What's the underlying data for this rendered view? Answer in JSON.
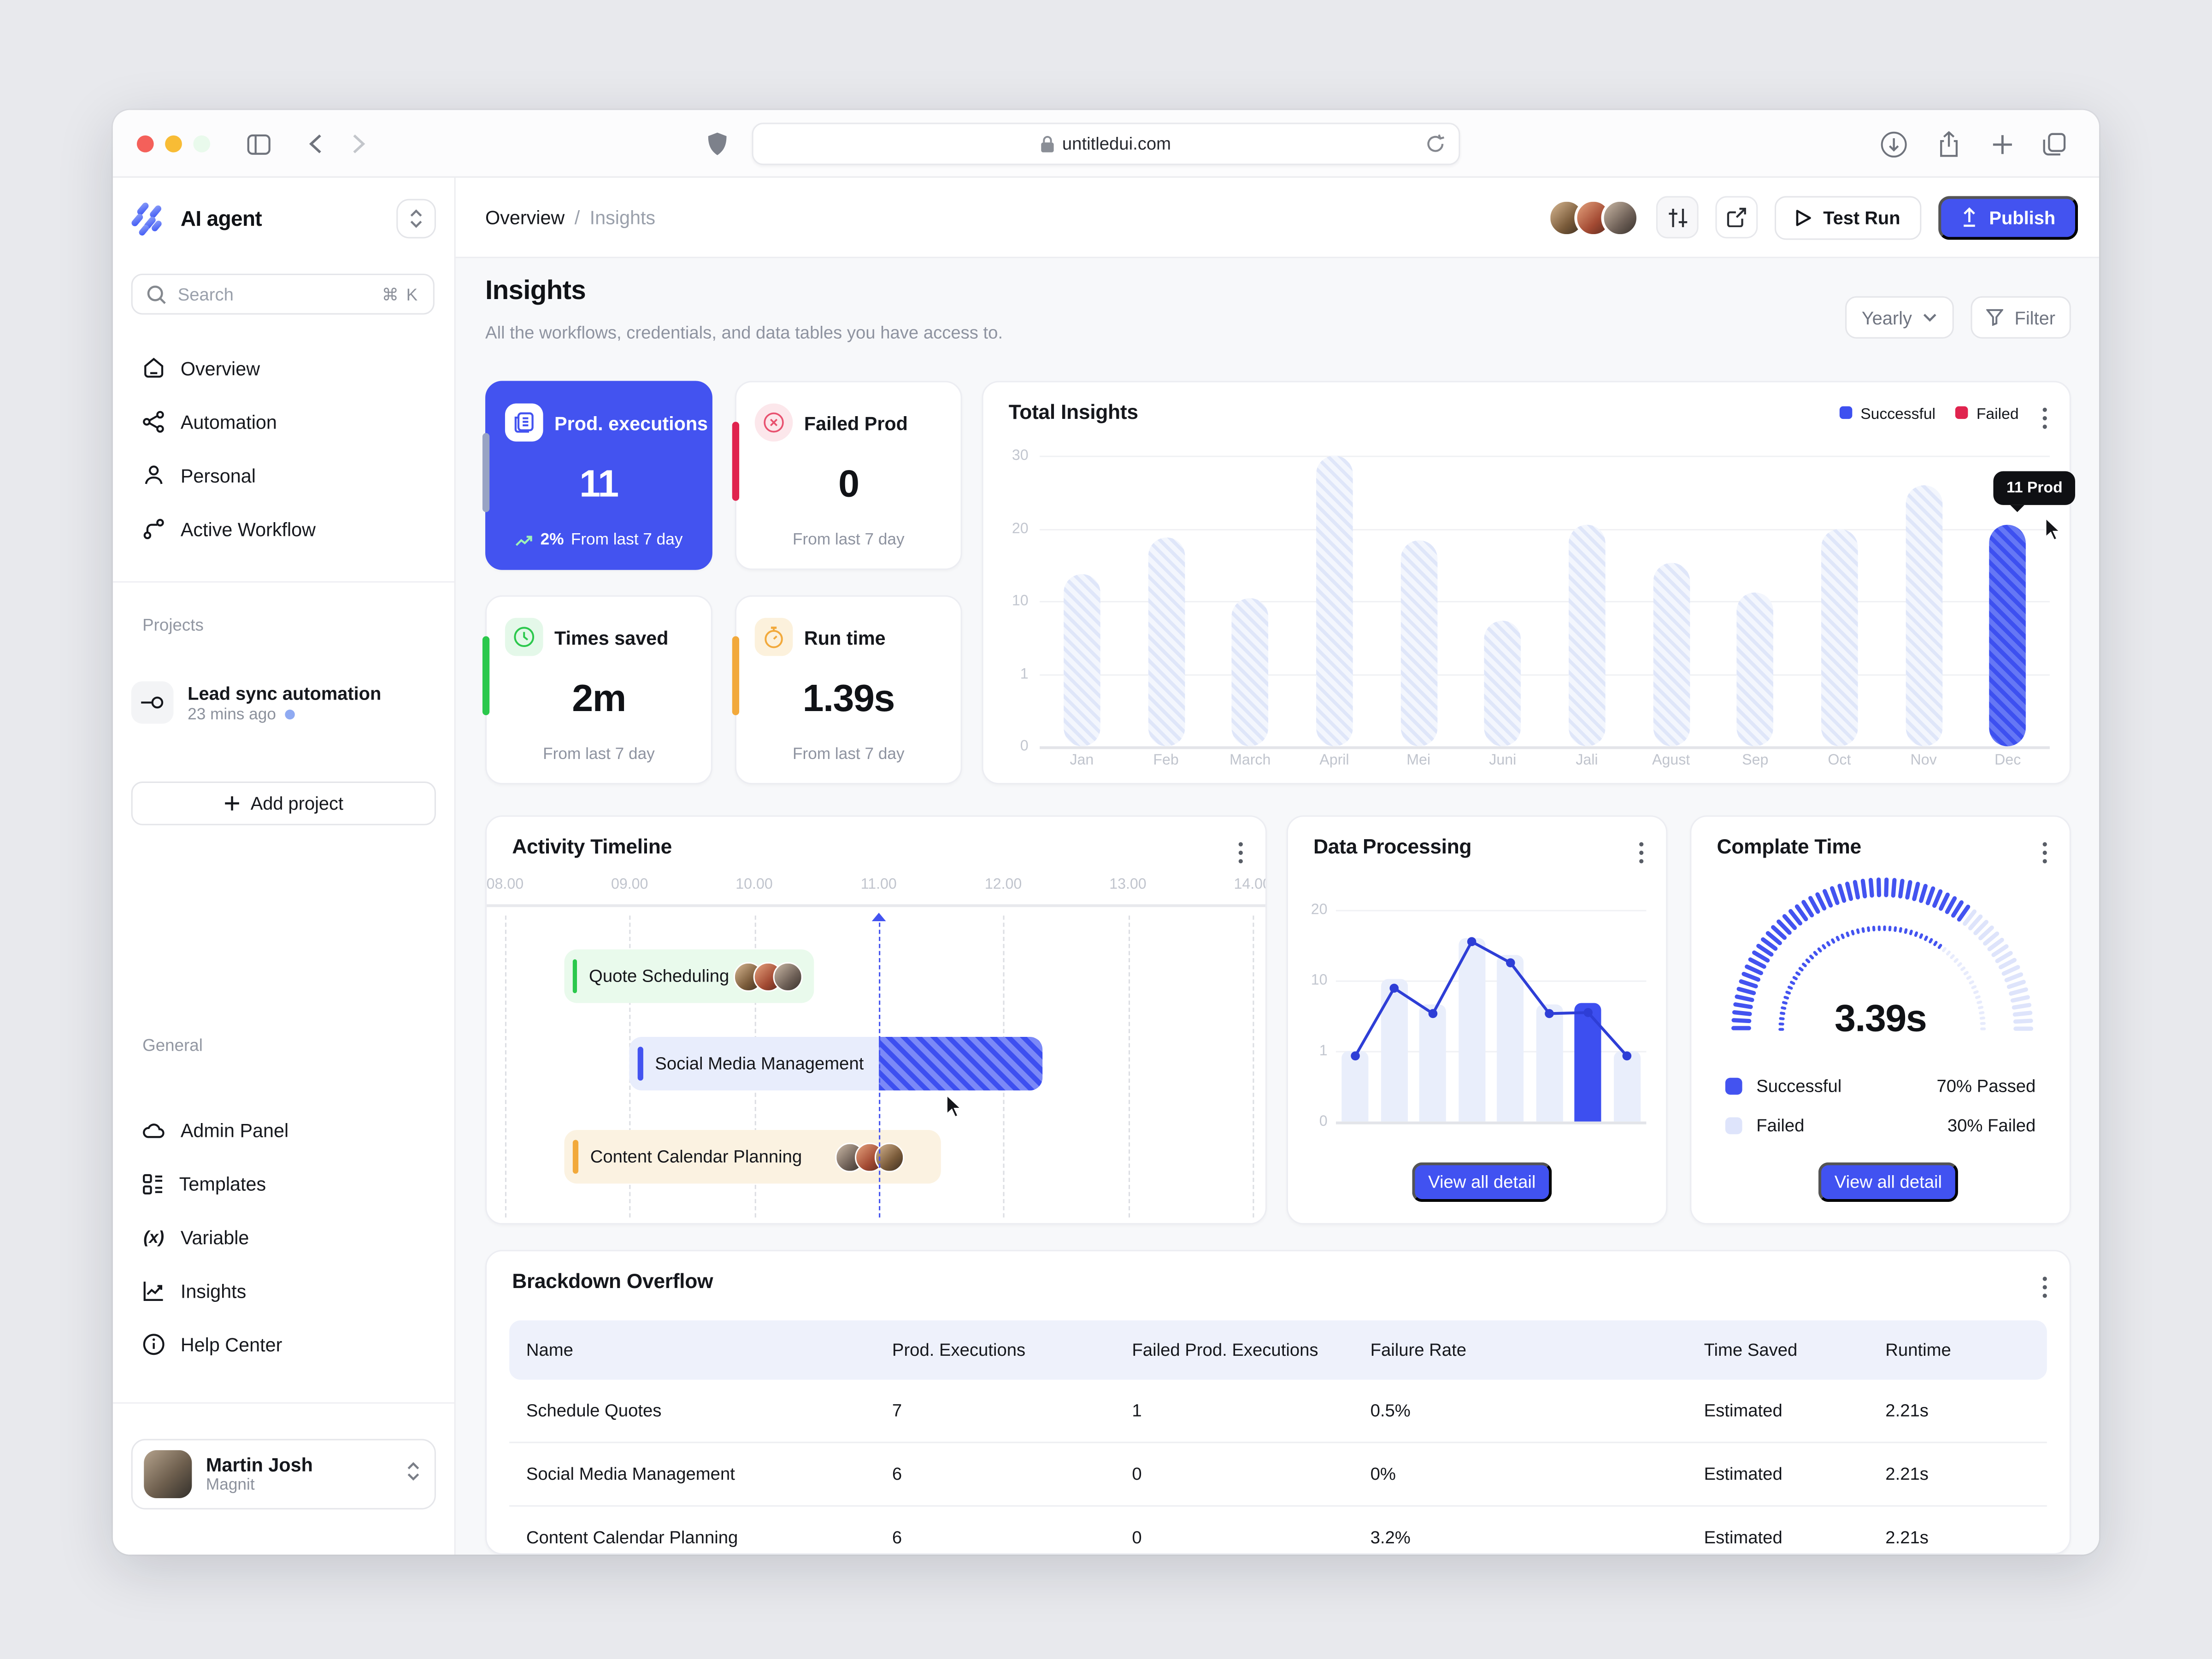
{
  "colors": {
    "accent": "#4353F0",
    "failed": "#E0234E",
    "success": "#2BC84C",
    "warning": "#F2A93B",
    "tooltip_bg": "#0F1013"
  },
  "browser": {
    "url": "untitledui.com"
  },
  "sidebar": {
    "app_name": "AI agent",
    "search": {
      "placeholder": "Search",
      "shortcut": "⌘ K"
    },
    "nav": [
      {
        "label": "Overview"
      },
      {
        "label": "Automation"
      },
      {
        "label": "Personal"
      },
      {
        "label": "Active Workflow"
      }
    ],
    "projects_label": "Projects",
    "project": {
      "name": "Lead sync automation",
      "time": "23 mins ago"
    },
    "add_project_label": "Add project",
    "general_label": "General",
    "general": [
      {
        "label": "Admin Panel"
      },
      {
        "label": "Templates"
      },
      {
        "label": "Variable"
      },
      {
        "label": "Insights"
      },
      {
        "label": "Help Center"
      }
    ],
    "user": {
      "name": "Martin Josh",
      "org": "Magnit"
    }
  },
  "header": {
    "breadcrumb": [
      "Overview",
      "Insights"
    ],
    "breadcrumb_sep": "/",
    "test_run_label": "Test Run",
    "publish_label": "Publish"
  },
  "page": {
    "title": "Insights",
    "subtitle": "All the workflows, credentials, and data tables you have access to.",
    "period_label": "Yearly",
    "filter_label": "Filter"
  },
  "stats": [
    {
      "label": "Prod. executions",
      "value": "11",
      "footer_pct": "2%",
      "footer": "From last 7 day",
      "selected": true
    },
    {
      "label": "Failed Prod",
      "value": "0",
      "footer": "From last 7 day"
    },
    {
      "label": "Times saved",
      "value": "2m",
      "footer": "From last 7 day"
    },
    {
      "label": "Run time",
      "value": "1.39s",
      "footer": "From last 7 day"
    }
  ],
  "chart_data": [
    {
      "id": "total_insights",
      "type": "bar",
      "title": "Total Insights",
      "legend": [
        "Successful",
        "Failed"
      ],
      "legend_colors": [
        "#3D50F0",
        "#E0234E"
      ],
      "categories": [
        "Jan",
        "Feb",
        "March",
        "April",
        "Mei",
        "Juni",
        "Jali",
        "Agust",
        "Sep",
        "Oct",
        "Nov",
        "Dec"
      ],
      "values": [
        17.7,
        21.6,
        15.3,
        30,
        21.3,
        12.9,
        22.8,
        18.9,
        15.9,
        22.5,
        27,
        22.8
      ],
      "height_pct": [
        59,
        72,
        51,
        100,
        71,
        43,
        76,
        63,
        53,
        75,
        90,
        76
      ],
      "y_ticks": [
        "30",
        "20",
        "10",
        "1",
        "0"
      ],
      "ylim": [
        0,
        30
      ],
      "grid": true,
      "legend_position": "top-right",
      "highlight_index": 11,
      "tooltip": "11 Prod",
      "xlabel": "",
      "ylabel": ""
    },
    {
      "id": "data_processing",
      "type": "bar+line",
      "title": "Data Processing",
      "y_ticks": [
        "20",
        "10",
        "1",
        "0"
      ],
      "bar_values": [
        1,
        10,
        6.3,
        15.6,
        13.3,
        6.3,
        6.4,
        1
      ],
      "bars_pct": [
        33.5,
        67.5,
        55.6,
        87,
        78.5,
        55.6,
        56,
        33.5
      ],
      "line_values": [
        0.9,
        9,
        5.4,
        15.3,
        12.6,
        5.4,
        5.5,
        0.9
      ],
      "line_pct": [
        31,
        63,
        51,
        85,
        75,
        51,
        51.5,
        31
      ],
      "highlight_index": 6,
      "grid": true,
      "button": "View all detail"
    },
    {
      "id": "complete_time",
      "type": "gauge",
      "title": "Complate Time",
      "value": "3.39s",
      "passed_pct": 70,
      "failed_pct": 30,
      "legend": [
        {
          "label": "Successful",
          "value": "70% Passed"
        },
        {
          "label": "Failed",
          "value": "30% Failed"
        }
      ],
      "button": "View all detail"
    }
  ],
  "timeline": {
    "title": "Activity Timeline",
    "hours": [
      "08.00",
      "09.00",
      "10.00",
      "11.00",
      "12.00",
      "13.00",
      "14.00"
    ],
    "now_hour": 11.0,
    "tasks": [
      {
        "label": "Quote Scheduling",
        "theme": "green",
        "start": 8.47,
        "end": 10.48,
        "avatars": 3
      },
      {
        "label": "Social Media Management",
        "theme": "blue",
        "start": 9.0,
        "end": 11.0,
        "striped_end": 12.32,
        "avatars": 0
      },
      {
        "label": "Content Calendar Planning",
        "theme": "orange",
        "start": 8.48,
        "end": 11.5,
        "avatars": 3
      }
    ]
  },
  "table": {
    "title": "Brackdown Overflow",
    "columns": [
      "Name",
      "Prod. Executions",
      "Failed Prod. Executions",
      "Failure Rate",
      "Time Saved",
      "Runtime"
    ],
    "rows": [
      [
        "Schedule Quotes",
        "7",
        "1",
        "0.5%",
        "Estimated",
        "2.21s"
      ],
      [
        "Social Media Management",
        "6",
        "0",
        "0%",
        "Estimated",
        "2.21s"
      ],
      [
        "Content Calendar Planning",
        "6",
        "0",
        "3.2%",
        "Estimated",
        "2.21s"
      ]
    ]
  }
}
